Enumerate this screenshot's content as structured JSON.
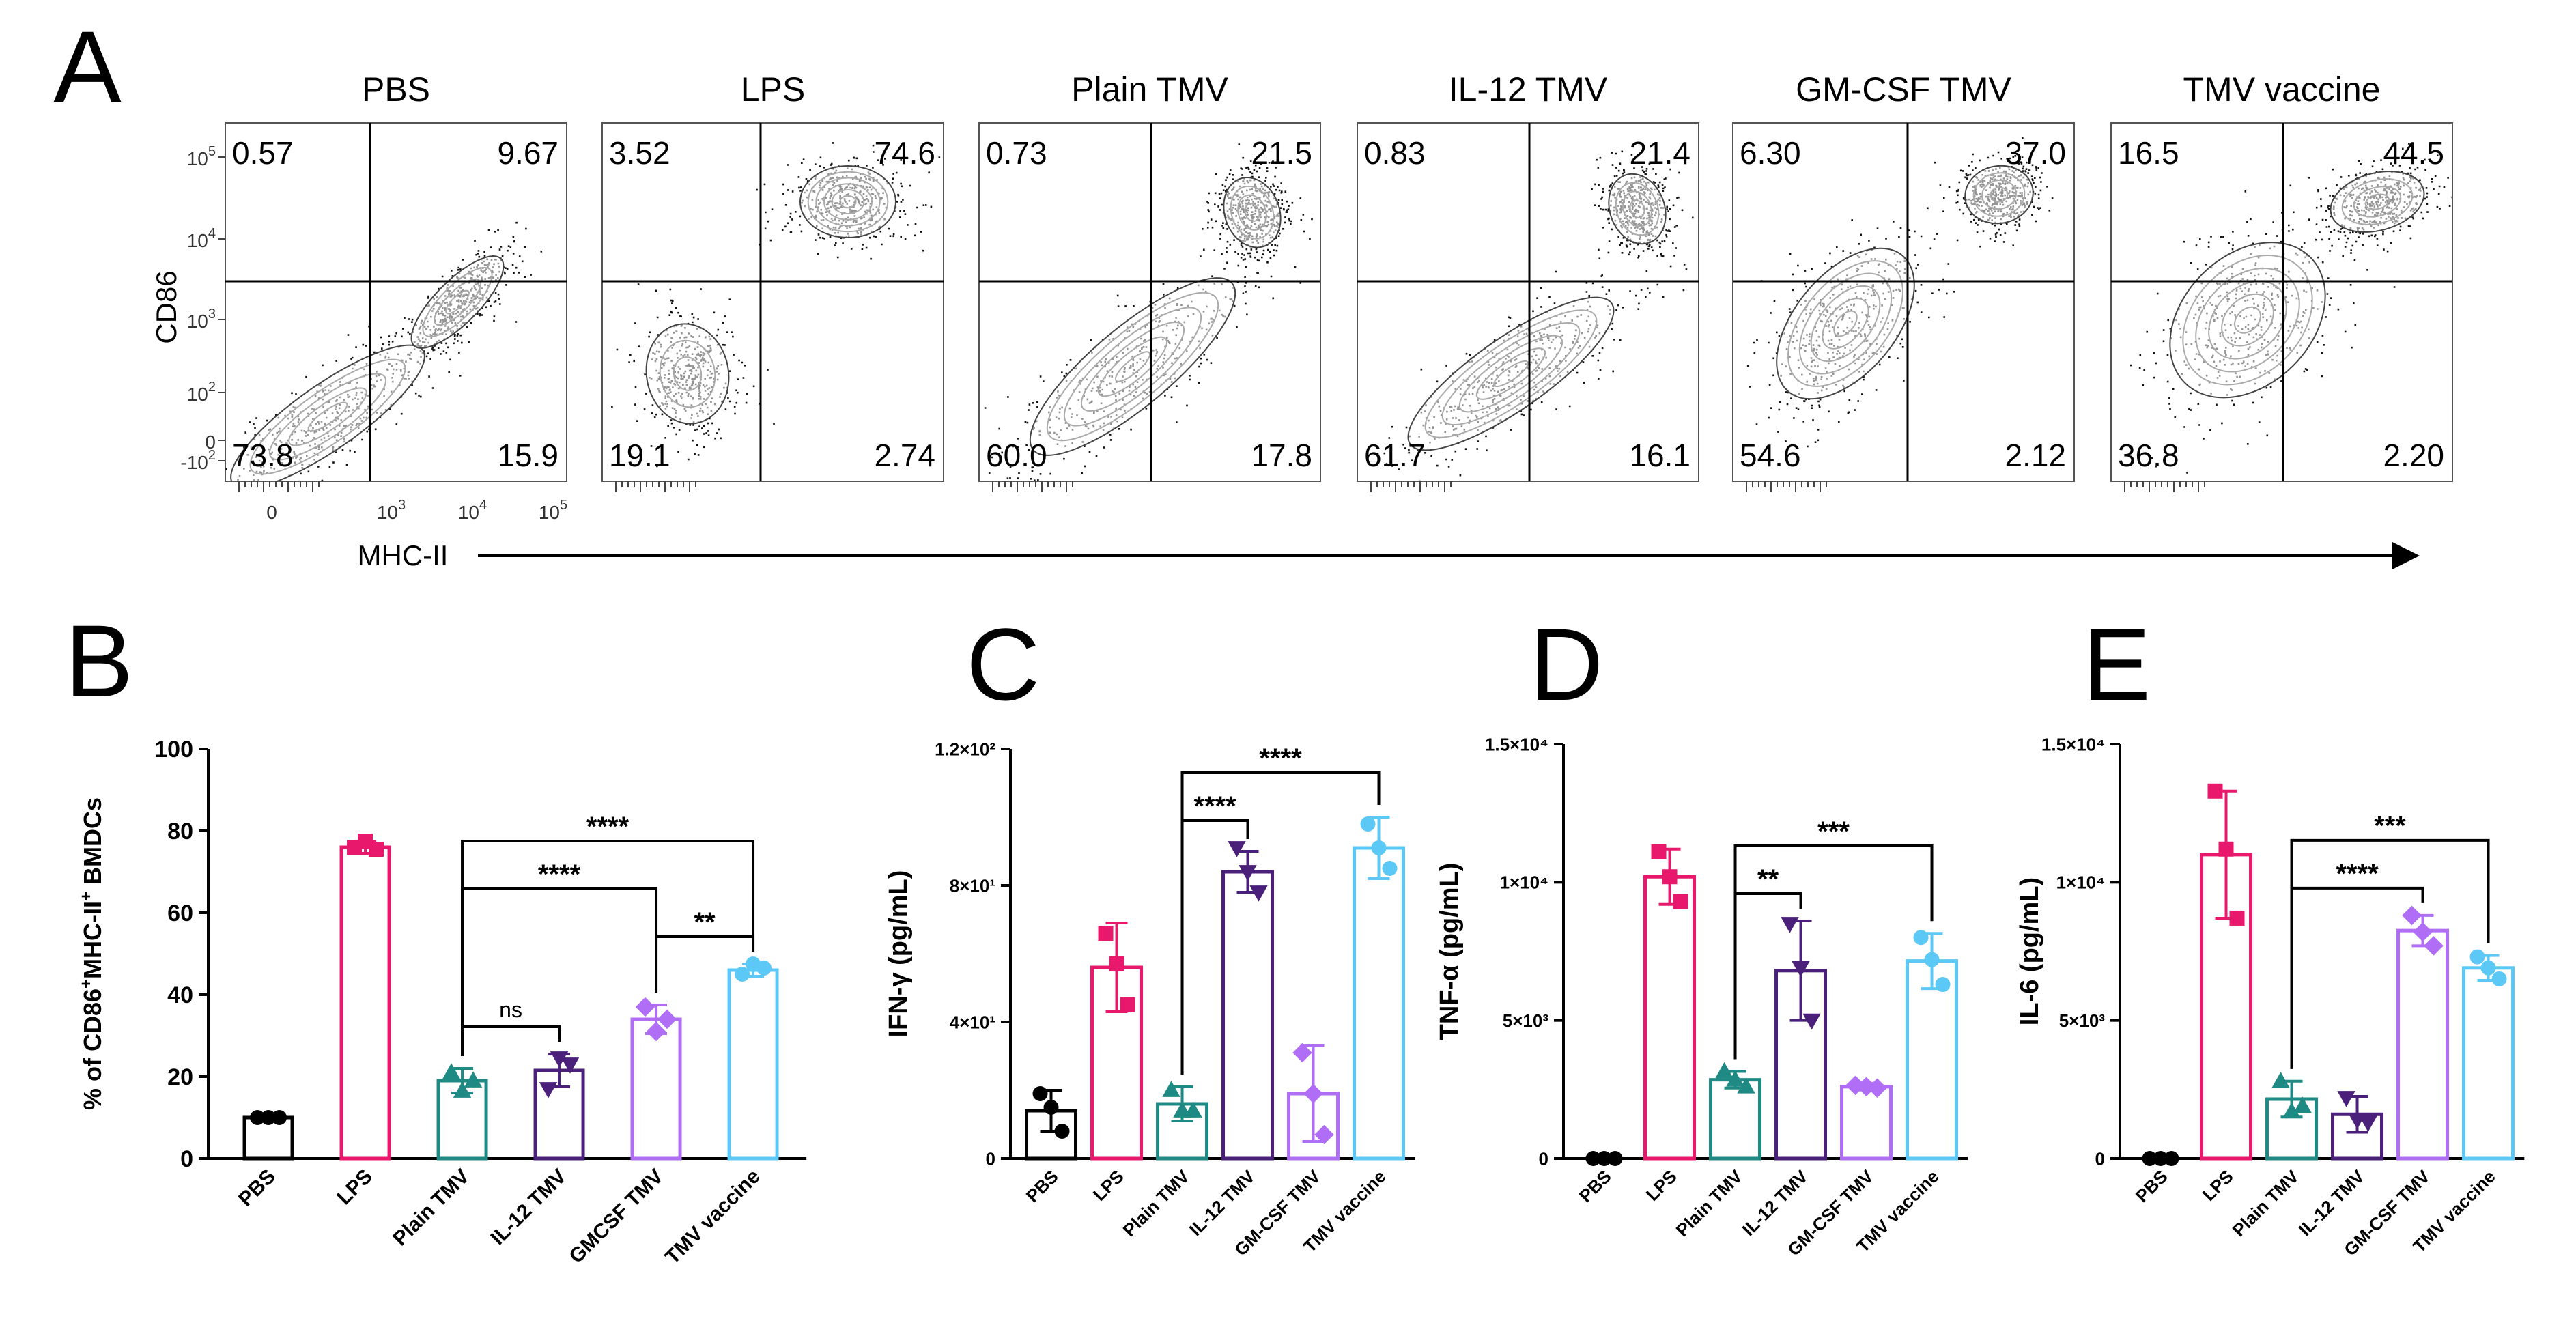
{
  "colors": {
    "PBS": "#000000",
    "LPS": "#e8196d",
    "Plain TMV": "#1f8a83",
    "IL-12 TMV": "#4b207a",
    "GM-CSF TMV": "#b06ef7",
    "TMV vaccine": "#5cc8f5"
  },
  "chart_data": [
    {
      "id": "A",
      "type": "scatter",
      "panel_label": "A",
      "subtype": "flow cytometry contour plots",
      "xlabel": "MHC-II",
      "ylabel": "CD86",
      "x_ticks": [
        "0",
        "10^3",
        "10^4",
        "10^5"
      ],
      "y_ticks": [
        "-10^2",
        "0",
        "10^2",
        "10^3",
        "10^4",
        "10^5"
      ],
      "plots": [
        {
          "title": "PBS",
          "q_ul": "0.57",
          "q_ur": "9.67",
          "q_ll": "73.8",
          "q_lr": "15.9"
        },
        {
          "title": "LPS",
          "q_ul": "3.52",
          "q_ur": "74.6",
          "q_ll": "19.1",
          "q_lr": "2.74"
        },
        {
          "title": "Plain TMV",
          "q_ul": "0.73",
          "q_ur": "21.5",
          "q_ll": "60.0",
          "q_lr": "17.8"
        },
        {
          "title": "IL-12 TMV",
          "q_ul": "0.83",
          "q_ur": "21.4",
          "q_ll": "61.7",
          "q_lr": "16.1"
        },
        {
          "title": "GM-CSF TMV",
          "q_ul": "6.30",
          "q_ur": "37.0",
          "q_ll": "54.6",
          "q_lr": "2.12"
        },
        {
          "title": "TMV vaccine",
          "q_ul": "16.5",
          "q_ur": "44.5",
          "q_ll": "36.8",
          "q_lr": "2.20"
        }
      ]
    },
    {
      "id": "B",
      "type": "bar",
      "panel_label": "B",
      "ylabel_parts": [
        "% of CD86",
        "+",
        "MHC-II",
        "+",
        " BMDCs"
      ],
      "ylim": [
        0,
        100
      ],
      "y_ticks": [
        "0",
        "20",
        "40",
        "60",
        "80",
        "100"
      ],
      "categories": [
        "PBS",
        "LPS",
        "Plain TMV",
        "IL-12 TMV",
        "GMCSF TMV",
        "TMV vaccine"
      ],
      "values": [
        10,
        76,
        19,
        21.5,
        34,
        46
      ],
      "errors": [
        0.5,
        1.5,
        3,
        4,
        3.5,
        1.5
      ],
      "points": [
        [
          10,
          10,
          10
        ],
        [
          76,
          77.5,
          75.5
        ],
        [
          21,
          16.5,
          19
        ],
        [
          17,
          24.5,
          23
        ],
        [
          37,
          31,
          34
        ],
        [
          45,
          47.5,
          46.5
        ]
      ],
      "markers": [
        "circle",
        "square",
        "triangle-up",
        "triangle-down",
        "diamond",
        "circle"
      ],
      "comparisons": [
        {
          "from": 2,
          "to": 3,
          "label": "ns"
        },
        {
          "from": 2,
          "to": 4,
          "label": "****"
        },
        {
          "from": 2,
          "to": 5,
          "label": "****"
        },
        {
          "from": 4,
          "to": 5,
          "label": "**"
        }
      ]
    },
    {
      "id": "C",
      "type": "bar",
      "panel_label": "C",
      "ylabel": "IFN-γ (pg/mL)",
      "ylim": [
        0,
        120
      ],
      "y_ticks": [
        "0",
        "4×10¹",
        "8×10¹",
        "1.2×10²"
      ],
      "categories": [
        "PBS",
        "LPS",
        "Plain TMV",
        "IL-12 TMV",
        "GM-CSF TMV",
        "TMV vaccine"
      ],
      "values": [
        14,
        56,
        16,
        84,
        19,
        91
      ],
      "errors": [
        6,
        13,
        5,
        6,
        14,
        9
      ],
      "points": [
        [
          19,
          15,
          8
        ],
        [
          66,
          57,
          45
        ],
        [
          20,
          14,
          14
        ],
        [
          91,
          84,
          78
        ],
        [
          31,
          19,
          7
        ],
        [
          98,
          91,
          85
        ]
      ],
      "markers": [
        "circle",
        "square",
        "triangle-up",
        "triangle-down",
        "diamond",
        "circle"
      ],
      "comparisons": [
        {
          "from": 2,
          "to": 3,
          "label": "****"
        },
        {
          "from": 2,
          "to": 5,
          "label": "****"
        }
      ]
    },
    {
      "id": "D",
      "type": "bar",
      "panel_label": "D",
      "ylabel": "TNF-α (pg/mL)",
      "ylim": [
        0,
        15000
      ],
      "y_ticks": [
        "0",
        "5×10³",
        "1×10⁴",
        "1.5×10⁴"
      ],
      "categories": [
        "PBS",
        "LPS",
        "Plain TMV",
        "IL-12 TMV",
        "GM-CSF TMV",
        "TMV vaccine"
      ],
      "values": [
        0,
        10200,
        2850,
        6800,
        2600,
        7150
      ],
      "errors": [
        0,
        1000,
        300,
        1800,
        120,
        1000
      ],
      "points": [
        [
          0,
          0,
          0
        ],
        [
          11100,
          10200,
          9300
        ],
        [
          3150,
          2850,
          2600
        ],
        [
          8500,
          6900,
          5000
        ],
        [
          2650,
          2600,
          2550
        ],
        [
          8000,
          7200,
          6300
        ]
      ],
      "markers": [
        "circle",
        "square",
        "triangle-up",
        "triangle-down",
        "diamond",
        "circle"
      ],
      "comparisons": [
        {
          "from": 2,
          "to": 3,
          "label": "**"
        },
        {
          "from": 2,
          "to": 5,
          "label": "***"
        }
      ]
    },
    {
      "id": "E",
      "type": "bar",
      "panel_label": "E",
      "ylabel": "IL-6 (pg/mL)",
      "ylim": [
        0,
        15000
      ],
      "y_ticks": [
        "0",
        "5×10³",
        "1×10⁴",
        "1.5×10⁴"
      ],
      "categories": [
        "PBS",
        "LPS",
        "Plain TMV",
        "IL-12 TMV",
        "GM-CSF TMV",
        "TMV vaccine"
      ],
      "values": [
        0,
        11000,
        2150,
        1600,
        8250,
        6900
      ],
      "errors": [
        0,
        2300,
        650,
        650,
        550,
        450
      ],
      "points": [
        [
          0,
          0,
          0
        ],
        [
          13300,
          11200,
          8700
        ],
        [
          2800,
          1700,
          1900
        ],
        [
          2200,
          1400,
          1300
        ],
        [
          8800,
          8200,
          7700
        ],
        [
          7300,
          6900,
          6500
        ]
      ],
      "markers": [
        "circle",
        "square",
        "triangle-up",
        "triangle-down",
        "diamond",
        "circle"
      ],
      "comparisons": [
        {
          "from": 2,
          "to": 4,
          "label": "****"
        },
        {
          "from": 2,
          "to": 5,
          "label": "***"
        }
      ]
    }
  ]
}
